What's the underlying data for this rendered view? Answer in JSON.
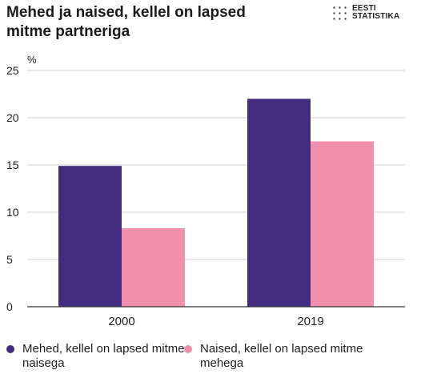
{
  "title": "Mehed ja naised, kellel on lapsed mitme partneriga",
  "logo": {
    "line1": "EESTI",
    "line2": "STATISTIKA"
  },
  "colors": {
    "series1": "#432c7f",
    "series2": "#f28fab",
    "grid": "#d0d0d0",
    "axis": "#333333"
  },
  "chart_data": {
    "type": "bar",
    "title": "Mehed ja naised, kellel on lapsed mitme partneriga",
    "ylabel": "%",
    "categories": [
      "2000",
      "2019"
    ],
    "ylim": [
      0,
      25
    ],
    "yticks": [
      0,
      5,
      10,
      15,
      20,
      25
    ],
    "grid": true,
    "legend": "bottom",
    "series": [
      {
        "name": "Mehed, kellel on lapsed mitme naisega",
        "values": [
          14.9,
          22.0
        ]
      },
      {
        "name": "Naised, kellel on lapsed mitme mehega",
        "values": [
          8.3,
          17.5
        ]
      }
    ]
  }
}
